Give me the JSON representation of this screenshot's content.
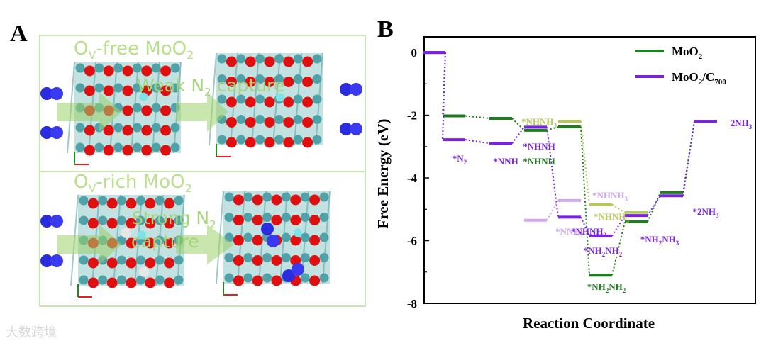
{
  "panel_a": {
    "letter": "A",
    "top_title": "O_V-free MoO2",
    "top_title_parts": {
      "o": "O",
      "sub": "V",
      "rest": "-free MoO",
      "sub2": "2"
    },
    "top_arrow_label_parts": {
      "a": "Weak N",
      "sub": "2",
      "b": " capture"
    },
    "bottom_title_parts": {
      "o": "O",
      "sub": "V",
      "rest": "-rich MoO",
      "sub2": "2"
    },
    "bottom_arrow_label_parts": {
      "a": "Strong N",
      "sub": "2",
      "b": "capture"
    }
  },
  "watermark": "大数跨境",
  "chart_data": {
    "type": "line",
    "letter": "B",
    "xlabel": "Reaction Coordinate",
    "ylabel": "Free Energy (eV)",
    "ylim": [
      -8,
      0.5
    ],
    "yticks": [
      0,
      -2,
      -4,
      -6,
      -8
    ],
    "grid": false,
    "legend_position": "top-right",
    "colors": {
      "MoO2": "#1e7d1e",
      "MoO2/C700": "#7b22e0",
      "MoO2_alt": "#b5c85a",
      "MoO2/C700_alt": "#cfa9ef"
    },
    "series": [
      {
        "name": "MoO2",
        "color": "#1e7d1e",
        "levels": [
          0,
          -2.02,
          -2.1,
          -2.48,
          -2.37,
          -7.1,
          -5.4,
          -4.47,
          -2.2
        ]
      },
      {
        "name": "MoO2/C700",
        "color": "#7b22e0",
        "levels": [
          0,
          -2.78,
          -2.9,
          -2.38,
          -5.25,
          -5.85,
          -5.2,
          -4.57,
          -2.2
        ]
      }
    ],
    "branches": [
      {
        "series": "MoO2",
        "color": "#b5c85a",
        "levels": [
          -2.2,
          -4.85,
          -5.1
        ]
      },
      {
        "series": "MoO2/C700",
        "color": "#cfa9ef",
        "levels": [
          -5.35,
          -4.72
        ]
      }
    ],
    "labels": [
      {
        "text": "*N",
        "sub": "2",
        "color": "#7b22e0"
      },
      {
        "text": "*NNH",
        "sub": "",
        "color": "#7b22e0"
      },
      {
        "text": "*NHNH",
        "sub": "",
        "color": "#7b22e0"
      },
      {
        "text": "*NHNH",
        "sub": "",
        "color": "#1e7d1e"
      },
      {
        "text": "*NHNH",
        "sub": "3",
        "color": "#b5c85a"
      },
      {
        "text": "*NNH",
        "sub": "2",
        "color": "#cfa9ef"
      },
      {
        "text": "*NHNH",
        "sub": "2",
        "color": "#7b22e0"
      },
      {
        "text": "*NHNH",
        "sub": "3",
        "color": "#cfa9ef"
      },
      {
        "text": "*NHNH",
        "sub": "3",
        "color": "#b5c85a"
      },
      {
        "text": "*NH",
        "sub": "2",
        "text2": "NH",
        "sub2": "2",
        "color": "#7b22e0"
      },
      {
        "text": "*NH",
        "sub": "2",
        "text2": "NH",
        "sub2": "2",
        "color": "#1e7d1e"
      },
      {
        "text": "*NH",
        "sub": "2",
        "text2": "NH",
        "sub2": "3",
        "color": "#7b22e0"
      },
      {
        "text": "*2NH",
        "sub": "3",
        "color": "#7b22e0"
      },
      {
        "text": "2NH",
        "sub": "3",
        "color": "#7b22e0"
      }
    ],
    "legend": [
      {
        "text": "MoO",
        "sub": "2",
        "text2": "",
        "sub2": "",
        "color": "#1e7d1e"
      },
      {
        "text": "MoO",
        "sub": "2",
        "text2": "/C",
        "sub2": "700",
        "color": "#7b22e0"
      }
    ]
  }
}
